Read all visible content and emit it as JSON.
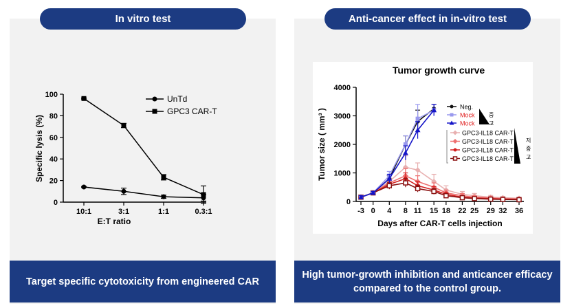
{
  "left": {
    "title": "In vitro test",
    "footer": "Target specific cytotoxicity from engineered CAR"
  },
  "right": {
    "title": "Anti-cancer effect in in-vitro test",
    "footer": "High tumor-growth inhibition and anticancer efficacy\ncompared to the control group."
  },
  "chart_data": [
    {
      "type": "line",
      "title": "",
      "xlabel": "E:T ratio",
      "ylabel": "Specific lysis (%)",
      "categories": [
        "10:1",
        "3:1",
        "1:1",
        "0.3:1"
      ],
      "yticks": [
        0,
        20,
        40,
        60,
        80,
        100
      ],
      "ylim": [
        0,
        100
      ],
      "legend_position": "top-right",
      "series": [
        {
          "name": "UnTd",
          "marker": "circle",
          "values": [
            14,
            10,
            5,
            4
          ],
          "errors": [
            0.5,
            3,
            1.5,
            3
          ]
        },
        {
          "name": "GPC3 CAR-T",
          "marker": "square",
          "values": [
            96,
            71,
            23,
            7
          ],
          "errors": [
            0.5,
            2,
            2.5,
            8
          ]
        }
      ]
    },
    {
      "type": "line",
      "title": "Tumor growth curve",
      "xlabel": "Days after CAR-T cells injection",
      "ylabel": "Tumor size ( mm³ )",
      "x": [
        -3,
        0,
        4,
        6,
        8,
        11,
        15
      ],
      "xticks": [
        -3,
        0,
        4,
        8,
        11,
        15,
        18,
        22,
        25,
        29,
        32,
        36
      ],
      "yticks": [
        0,
        1000,
        2000,
        3000,
        4000
      ],
      "ylim": [
        0,
        4000
      ],
      "legend_position": "right",
      "legend_group_labels": {
        "control": [
          "중",
          "고"
        ],
        "treated": [
          "저",
          "중",
          "고"
        ]
      },
      "series": [
        {
          "name": "Neg.",
          "label_color": "#000000",
          "color": "#111111",
          "marker": "circle",
          "x": [
            -3,
            0,
            4,
            8,
            11,
            15
          ],
          "values": [
            150,
            300,
            800,
            2000,
            2800,
            3250
          ],
          "errors": [
            50,
            50,
            100,
            300,
            400,
            150
          ]
        },
        {
          "name": "Mock",
          "label_color": "#e02020",
          "color": "#9999ee",
          "marker": "square",
          "x": [
            -3,
            0,
            4,
            8,
            11,
            15
          ],
          "values": [
            150,
            300,
            900,
            2000,
            2900,
            3200
          ],
          "errors": [
            50,
            50,
            150,
            300,
            500,
            200
          ]
        },
        {
          "name": "Mock",
          "label_color": "#e02020",
          "color": "#1515c8",
          "marker": "triangle",
          "x": [
            -3,
            0,
            4,
            8,
            11,
            15
          ],
          "values": [
            150,
            300,
            800,
            1700,
            2500,
            3200
          ],
          "errors": [
            50,
            50,
            150,
            250,
            300,
            200
          ]
        },
        {
          "name": "GPC3-IL18 CAR-T",
          "label_color": "#000000",
          "color": "#e8b0b0",
          "marker": "diamond",
          "x": [
            -3,
            0,
            4,
            8,
            11,
            15,
            18,
            22,
            25,
            29,
            32,
            36
          ],
          "values": [
            150,
            300,
            700,
            1200,
            1100,
            700,
            400,
            250,
            200,
            150,
            130,
            110
          ],
          "errors": [
            50,
            50,
            200,
            400,
            250,
            250,
            150,
            100,
            80,
            60,
            50,
            40
          ]
        },
        {
          "name": "GPC3-IL18 CAR-T",
          "label_color": "#000000",
          "color": "#ee7070",
          "marker": "diamond",
          "x": [
            -3,
            0,
            4,
            8,
            11,
            15,
            18,
            22,
            25,
            29,
            32,
            36
          ],
          "values": [
            150,
            300,
            650,
            900,
            700,
            500,
            300,
            200,
            150,
            120,
            100,
            90
          ],
          "errors": [
            50,
            50,
            150,
            250,
            200,
            150,
            100,
            80,
            60,
            50,
            40,
            40
          ]
        },
        {
          "name": "GPC3-IL18 CAR-T",
          "label_color": "#000000",
          "color": "#d42020",
          "marker": "circle",
          "x": [
            -3,
            0,
            4,
            8,
            11,
            15,
            18,
            22,
            25,
            29,
            32,
            36
          ],
          "values": [
            150,
            300,
            600,
            800,
            550,
            400,
            250,
            150,
            120,
            100,
            80,
            70
          ],
          "errors": [
            50,
            50,
            150,
            200,
            150,
            120,
            80,
            60,
            50,
            40,
            40,
            30
          ]
        },
        {
          "name": "GPC3-IL18 CAR-T",
          "label_color": "#000000",
          "color": "#8a1010",
          "marker": "square-open",
          "x": [
            -3,
            0,
            4,
            8,
            11,
            15,
            18,
            22,
            25,
            29,
            32,
            36
          ],
          "values": [
            150,
            300,
            550,
            650,
            450,
            350,
            200,
            130,
            100,
            80,
            70,
            60
          ],
          "errors": [
            50,
            50,
            120,
            150,
            120,
            100,
            70,
            50,
            40,
            30,
            30,
            30
          ]
        }
      ]
    }
  ]
}
